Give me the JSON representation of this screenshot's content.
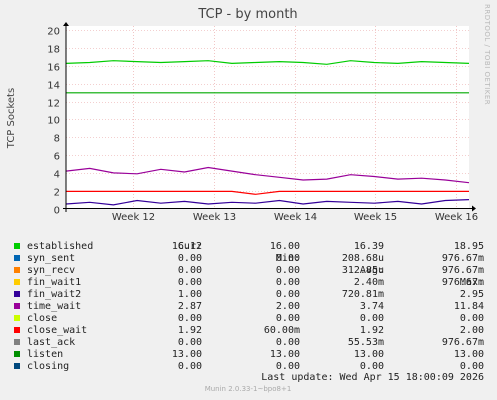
{
  "chart_data": {
    "type": "line",
    "title": "TCP - by month",
    "ylabel": "TCP Sockets",
    "ylim": [
      0,
      20.5
    ],
    "yticks": [
      0,
      2,
      4,
      6,
      8,
      10,
      12,
      14,
      16,
      18,
      20
    ],
    "xticks": [
      "Week 12",
      "Week 13",
      "Week 14",
      "Week 15",
      "Week 16"
    ],
    "grid": true,
    "series": [
      {
        "name": "established",
        "color": "#00cc00",
        "values": [
          16.3,
          16.4,
          16.6,
          16.5,
          16.4,
          16.5,
          16.6,
          16.3,
          16.4,
          16.5,
          16.4,
          16.2,
          16.6,
          16.4,
          16.3,
          16.5,
          16.4,
          16.3
        ]
      },
      {
        "name": "listen",
        "color": "#00aa00",
        "values": [
          13,
          13,
          13,
          13,
          13,
          13,
          13,
          13,
          13,
          13,
          13,
          13,
          13,
          13,
          13,
          13,
          13,
          13
        ]
      },
      {
        "name": "time_wait",
        "color": "#990099",
        "values": [
          4.2,
          4.5,
          4.0,
          3.9,
          4.4,
          4.1,
          4.6,
          4.2,
          3.8,
          3.5,
          3.2,
          3.3,
          3.8,
          3.6,
          3.3,
          3.4,
          3.2,
          2.9
        ]
      },
      {
        "name": "close_wait",
        "color": "#ff0000",
        "values": [
          1.92,
          1.92,
          1.92,
          1.92,
          1.92,
          1.92,
          1.92,
          1.92,
          1.6,
          1.92,
          1.92,
          1.92,
          1.92,
          1.92,
          1.92,
          1.92,
          1.92,
          1.92
        ]
      },
      {
        "name": "fin_wait2",
        "color": "#330099",
        "values": [
          0.5,
          0.7,
          0.4,
          0.9,
          0.6,
          0.8,
          0.5,
          0.7,
          0.6,
          0.9,
          0.5,
          0.8,
          0.7,
          0.6,
          0.8,
          0.5,
          0.9,
          1.0
        ]
      }
    ],
    "legend_header": {
      "cur": "Cur:",
      "min": "Min:",
      "avg": "Avg:",
      "max": "Max:"
    },
    "legend": [
      {
        "name": "established",
        "color": "#00cc00",
        "cur": "16.12",
        "min": "16.00",
        "avg": "16.39",
        "max": "18.95"
      },
      {
        "name": "syn_sent",
        "color": "#0066b3",
        "cur": "0.00",
        "min": "0.00",
        "avg": "208.68u",
        "max": "976.67m"
      },
      {
        "name": "syn_recv",
        "color": "#ff8000",
        "cur": "0.00",
        "min": "0.00",
        "avg": "312.85u",
        "max": "976.67m"
      },
      {
        "name": "fin_wait1",
        "color": "#ffcc00",
        "cur": "0.00",
        "min": "0.00",
        "avg": "2.40m",
        "max": "976.67m"
      },
      {
        "name": "fin_wait2",
        "color": "#330099",
        "cur": "1.00",
        "min": "0.00",
        "avg": "720.81m",
        "max": "2.95"
      },
      {
        "name": "time_wait",
        "color": "#990099",
        "cur": "2.87",
        "min": "2.00",
        "avg": "3.74",
        "max": "11.84"
      },
      {
        "name": "close",
        "color": "#ccff00",
        "cur": "0.00",
        "min": "0.00",
        "avg": "0.00",
        "max": "0.00"
      },
      {
        "name": "close_wait",
        "color": "#ff0000",
        "cur": "1.92",
        "min": "60.00m",
        "avg": "1.92",
        "max": "2.00"
      },
      {
        "name": "last_ack",
        "color": "#808080",
        "cur": "0.00",
        "min": "0.00",
        "avg": "55.53m",
        "max": "976.67m"
      },
      {
        "name": "listen",
        "color": "#008f00",
        "cur": "13.00",
        "min": "13.00",
        "avg": "13.00",
        "max": "13.00"
      },
      {
        "name": "closing",
        "color": "#00487d",
        "cur": "0.00",
        "min": "0.00",
        "avg": "0.00",
        "max": "0.00"
      }
    ]
  },
  "watermark": "RRDTOOL / TOBI OETIKER",
  "last_update": "Last update: Wed Apr 15 18:00:09 2026",
  "footer": "Munin 2.0.33-1~bpo8+1"
}
